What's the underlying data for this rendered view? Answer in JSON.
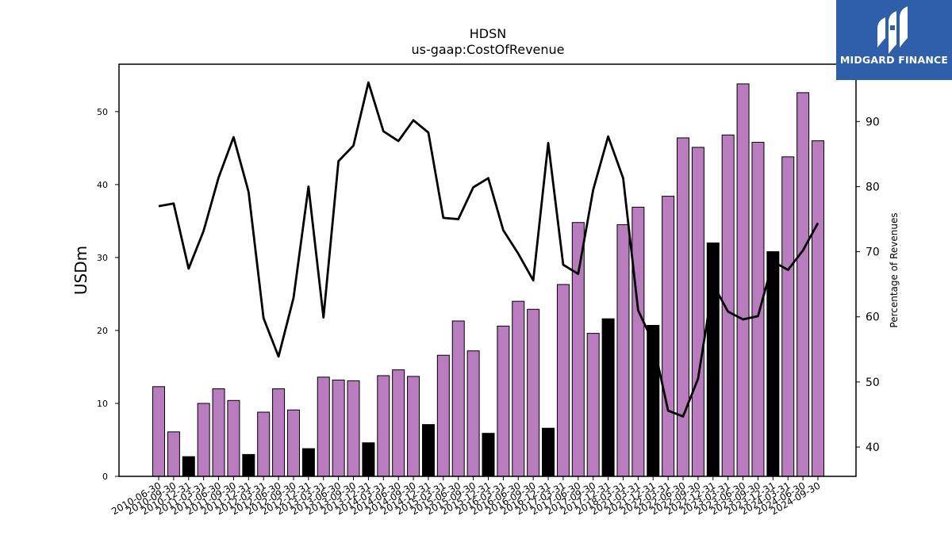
{
  "logo": {
    "text": "MIDGARD FINANCE"
  },
  "chart_data": {
    "type": "bar",
    "title": "HDSN",
    "subtitle": "us-gaap:CostOfRevenue",
    "ylabel": "USDm",
    "y2label": "Percentage of Revenues",
    "ylim": [
      0,
      56.5
    ],
    "y2lim": [
      35.5,
      98.8
    ],
    "yticks": [
      0,
      10,
      20,
      30,
      40,
      50
    ],
    "y2ticks": [
      40,
      50,
      60,
      70,
      80,
      90
    ],
    "categories": [
      "2010-06-30",
      "2010-09-30",
      "2010-12-31",
      "2011-03-31",
      "2011-06-30",
      "2011-09-30",
      "2011-12-31",
      "2012-03-31",
      "2012-06-30",
      "2012-09-30",
      "2012-12-31",
      "2013-03-31",
      "2013-06-30",
      "2013-09-30",
      "2013-12-31",
      "2014-03-31",
      "2014-06-30",
      "2014-09-30",
      "2014-12-31",
      "2015-03-31",
      "2015-06-30",
      "2015-09-30",
      "2015-12-31",
      "2016-03-31",
      "2016-06-30",
      "2016-09-30",
      "2016-12-31",
      "2017-03-31",
      "2017-06-30",
      "2017-09-30",
      "2017-12-31",
      "2018-03-31",
      "2021-03-31",
      "2021-12-31",
      "2022-03-31",
      "2022-06-30",
      "2022-09-30",
      "2022-12-31",
      "2023-03-31",
      "2023-06-30",
      "2023-09-30",
      "2023-12-31",
      "2024-03-31",
      "2024-06-30",
      "2024-09-30"
    ],
    "series": [
      {
        "type": "bar",
        "values": [
          12.3,
          6.1,
          2.7,
          10.0,
          12.0,
          10.4,
          3.0,
          8.8,
          12.0,
          9.1,
          3.8,
          13.6,
          13.2,
          13.1,
          4.6,
          13.8,
          14.6,
          13.7,
          7.1,
          16.6,
          21.3,
          17.2,
          5.9,
          20.6,
          24.0,
          22.9,
          6.6,
          26.3,
          34.8,
          19.6,
          21.6,
          34.5,
          36.9,
          20.7,
          38.4,
          46.4,
          45.1,
          32.0,
          46.8,
          53.8,
          45.8,
          30.8,
          43.8,
          52.6,
          46.0
        ],
        "highlight": [
          false,
          false,
          true,
          false,
          false,
          false,
          true,
          false,
          false,
          false,
          true,
          false,
          false,
          false,
          true,
          false,
          false,
          false,
          true,
          false,
          false,
          false,
          true,
          false,
          false,
          false,
          true,
          false,
          false,
          false,
          true,
          false,
          false,
          true,
          false,
          false,
          false,
          true,
          false,
          false,
          false,
          true,
          false,
          false,
          false
        ],
        "color": "#b87cbf",
        "highlight_color": "#000000"
      },
      {
        "type": "line",
        "axis": "right",
        "values": [
          77.0,
          77.4,
          67.4,
          73.2,
          81.4,
          87.6,
          79.2,
          59.8,
          53.9,
          62.9,
          80.0,
          59.9,
          83.9,
          86.3,
          96.0,
          88.5,
          87.0,
          90.2,
          88.3,
          75.2,
          75.0,
          79.9,
          81.3,
          73.3,
          69.7,
          65.6,
          86.7,
          68.0,
          66.6,
          79.5,
          87.7,
          81.3,
          61.0,
          56.1,
          45.6,
          44.7,
          50.5,
          65.0,
          60.8,
          59.6,
          60.1,
          68.5,
          67.2,
          70.2,
          74.4
        ],
        "color": "#000000"
      }
    ]
  }
}
